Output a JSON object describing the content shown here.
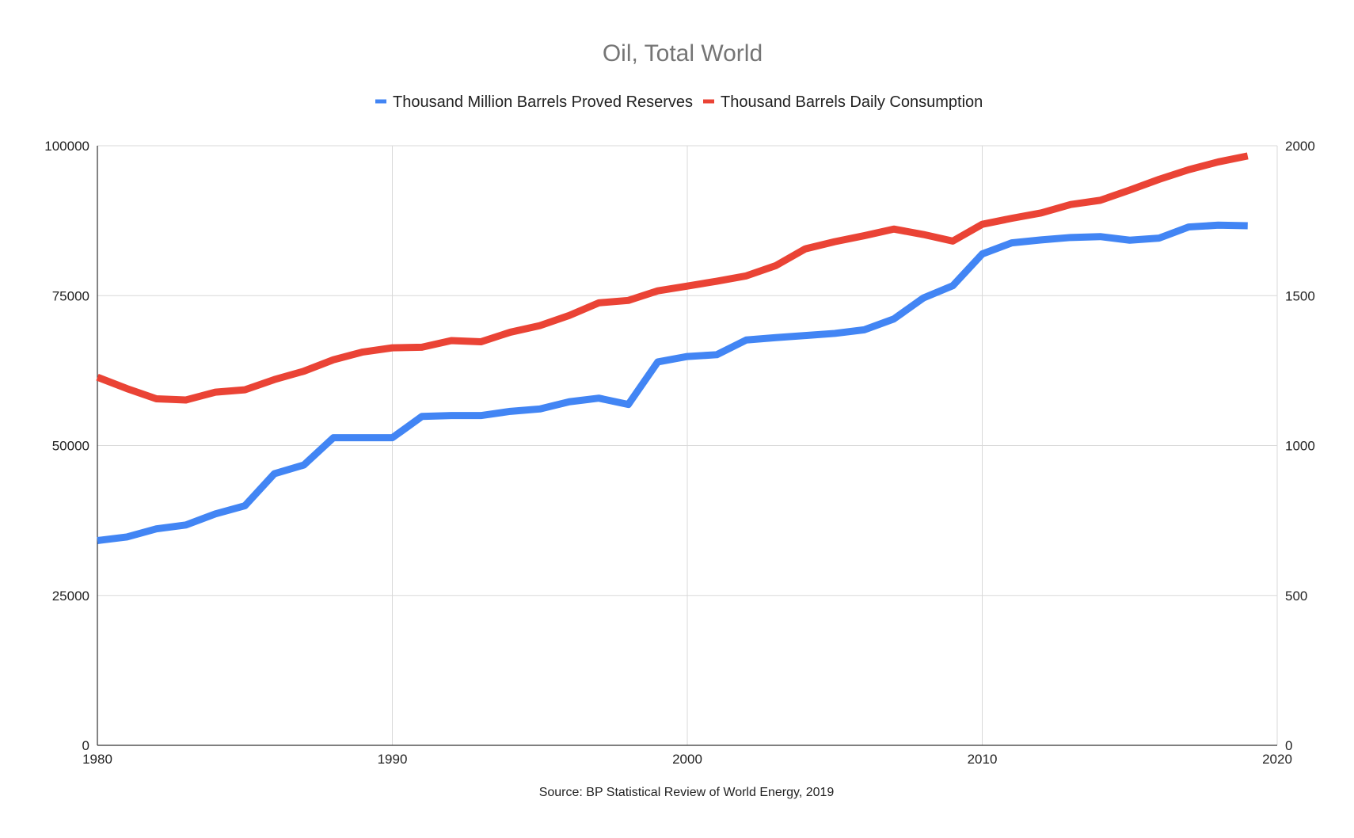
{
  "chart_data": {
    "type": "line",
    "title": "Oil, Total World",
    "source": "Source: BP Statistical Review of World Energy, 2019",
    "x": [
      1980,
      1981,
      1982,
      1983,
      1984,
      1985,
      1986,
      1987,
      1988,
      1989,
      1990,
      1991,
      1992,
      1993,
      1994,
      1995,
      1996,
      1997,
      1998,
      1999,
      2000,
      2001,
      2002,
      2003,
      2004,
      2005,
      2006,
      2007,
      2008,
      2009,
      2010,
      2011,
      2012,
      2013,
      2014,
      2015,
      2016,
      2017,
      2018,
      2019
    ],
    "x_ticks": [
      "1980",
      "1990",
      "2000",
      "2010",
      "2020"
    ],
    "xlim": [
      1980,
      2020
    ],
    "y_left_ticks": [
      "0",
      "25000",
      "50000",
      "75000",
      "100000"
    ],
    "y_left_lim": [
      0,
      100000
    ],
    "y_right_ticks": [
      "0",
      "500",
      "1000",
      "1500",
      "2000"
    ],
    "y_right_lim": [
      0,
      2000
    ],
    "grid": true,
    "legend_position": "top",
    "series": [
      {
        "name": "Thousand Million Barrels Proved Reserves",
        "color": "#4285f4",
        "axis": "right",
        "values": [
          683,
          695,
          722,
          735,
          772,
          799,
          906,
          935,
          1026,
          1026,
          1026,
          1097,
          1100,
          1100,
          1114,
          1122,
          1146,
          1158,
          1137,
          1279,
          1297,
          1303,
          1352,
          1360,
          1367,
          1374,
          1386,
          1422,
          1492,
          1533,
          1639,
          1676,
          1686,
          1694,
          1697,
          1685,
          1692,
          1729,
          1735,
          1733
        ]
      },
      {
        "name": "Thousand Barrels Daily Consumption",
        "color": "#ea4335",
        "axis": "left",
        "values": [
          61400,
          59500,
          57800,
          57600,
          58900,
          59300,
          61000,
          62400,
          64300,
          65600,
          66300,
          66400,
          67500,
          67300,
          68900,
          70000,
          71700,
          73800,
          74200,
          75800,
          76600,
          77400,
          78300,
          80000,
          82800,
          84000,
          85000,
          86100,
          85200,
          84100,
          86900,
          87900,
          88800,
          90200,
          90900,
          92600,
          94400,
          96000,
          97300,
          98300
        ]
      }
    ]
  }
}
